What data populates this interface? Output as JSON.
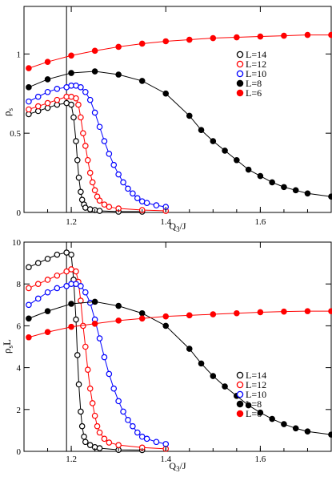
{
  "chart_data": [
    {
      "type": "line",
      "xlabel": "Q3/J",
      "ylabel": "ρs",
      "xlim": [
        1.1,
        1.75
      ],
      "ylim": [
        0,
        1.3
      ],
      "xticks": [
        1.2,
        1.4,
        1.6
      ],
      "xtick_labels": [
        "1.2",
        "1.4",
        "1.6"
      ],
      "yticks": [
        0,
        0.5,
        1
      ],
      "ytick_labels": [
        "0",
        "0.5",
        "1"
      ],
      "vline_x": 1.19,
      "legend_position": "right",
      "series": [
        {
          "name": "L=14",
          "color": "#000000",
          "marker": "open",
          "points": [
            [
              1.11,
              0.62
            ],
            [
              1.13,
              0.64
            ],
            [
              1.15,
              0.66
            ],
            [
              1.17,
              0.68
            ],
            [
              1.19,
              0.69
            ],
            [
              1.2,
              0.68
            ],
            [
              1.205,
              0.6
            ],
            [
              1.21,
              0.45
            ],
            [
              1.213,
              0.33
            ],
            [
              1.216,
              0.22
            ],
            [
              1.22,
              0.13
            ],
            [
              1.223,
              0.08
            ],
            [
              1.227,
              0.05
            ],
            [
              1.23,
              0.03
            ],
            [
              1.24,
              0.02
            ],
            [
              1.25,
              0.015
            ],
            [
              1.26,
              0.01
            ],
            [
              1.3,
              0.005
            ],
            [
              1.35,
              0.005
            ]
          ]
        },
        {
          "name": "L=12",
          "color": "#ff0000",
          "marker": "open",
          "points": [
            [
              1.11,
              0.65
            ],
            [
              1.13,
              0.67
            ],
            [
              1.15,
              0.69
            ],
            [
              1.17,
              0.71
            ],
            [
              1.19,
              0.73
            ],
            [
              1.2,
              0.73
            ],
            [
              1.21,
              0.72
            ],
            [
              1.215,
              0.68
            ],
            [
              1.22,
              0.6
            ],
            [
              1.225,
              0.5
            ],
            [
              1.23,
              0.42
            ],
            [
              1.235,
              0.33
            ],
            [
              1.24,
              0.25
            ],
            [
              1.245,
              0.19
            ],
            [
              1.25,
              0.14
            ],
            [
              1.255,
              0.1
            ],
            [
              1.26,
              0.075
            ],
            [
              1.27,
              0.05
            ],
            [
              1.28,
              0.035
            ],
            [
              1.3,
              0.025
            ],
            [
              1.35,
              0.015
            ],
            [
              1.4,
              0.01
            ]
          ]
        },
        {
          "name": "L=10",
          "color": "#0000ff",
          "marker": "open",
          "points": [
            [
              1.11,
              0.7
            ],
            [
              1.13,
              0.73
            ],
            [
              1.15,
              0.76
            ],
            [
              1.17,
              0.78
            ],
            [
              1.19,
              0.79
            ],
            [
              1.2,
              0.8
            ],
            [
              1.21,
              0.8
            ],
            [
              1.22,
              0.79
            ],
            [
              1.23,
              0.76
            ],
            [
              1.24,
              0.71
            ],
            [
              1.25,
              0.63
            ],
            [
              1.26,
              0.54
            ],
            [
              1.27,
              0.45
            ],
            [
              1.28,
              0.37
            ],
            [
              1.29,
              0.3
            ],
            [
              1.3,
              0.24
            ],
            [
              1.31,
              0.19
            ],
            [
              1.32,
              0.15
            ],
            [
              1.33,
              0.12
            ],
            [
              1.34,
              0.09
            ],
            [
              1.35,
              0.07
            ],
            [
              1.36,
              0.06
            ],
            [
              1.38,
              0.045
            ],
            [
              1.4,
              0.035
            ]
          ]
        },
        {
          "name": "L=8",
          "color": "#000000",
          "marker": "filled",
          "points": [
            [
              1.11,
              0.79
            ],
            [
              1.15,
              0.84
            ],
            [
              1.2,
              0.88
            ],
            [
              1.25,
              0.89
            ],
            [
              1.3,
              0.87
            ],
            [
              1.35,
              0.83
            ],
            [
              1.4,
              0.75
            ],
            [
              1.45,
              0.61
            ],
            [
              1.475,
              0.52
            ],
            [
              1.5,
              0.45
            ],
            [
              1.525,
              0.39
            ],
            [
              1.55,
              0.33
            ],
            [
              1.575,
              0.27
            ],
            [
              1.6,
              0.23
            ],
            [
              1.625,
              0.19
            ],
            [
              1.65,
              0.16
            ],
            [
              1.675,
              0.14
            ],
            [
              1.7,
              0.12
            ],
            [
              1.75,
              0.1
            ]
          ]
        },
        {
          "name": "L=6",
          "color": "#ff0000",
          "marker": "filled",
          "points": [
            [
              1.11,
              0.91
            ],
            [
              1.15,
              0.95
            ],
            [
              1.2,
              0.99
            ],
            [
              1.25,
              1.02
            ],
            [
              1.3,
              1.045
            ],
            [
              1.35,
              1.065
            ],
            [
              1.4,
              1.08
            ],
            [
              1.45,
              1.09
            ],
            [
              1.5,
              1.1
            ],
            [
              1.55,
              1.105
            ],
            [
              1.6,
              1.11
            ],
            [
              1.65,
              1.115
            ],
            [
              1.7,
              1.12
            ],
            [
              1.75,
              1.12
            ]
          ]
        }
      ]
    },
    {
      "type": "line",
      "xlabel": "Q3/J",
      "ylabel": "ρsL",
      "xlim": [
        1.1,
        1.75
      ],
      "ylim": [
        0,
        10
      ],
      "xticks": [
        1.2,
        1.4,
        1.6
      ],
      "xtick_labels": [
        "1.2",
        "1.4",
        "1.6"
      ],
      "yticks": [
        0,
        2,
        4,
        6,
        8,
        10
      ],
      "ytick_labels": [
        "0",
        "2",
        "4",
        "6",
        "8",
        "10"
      ],
      "vline_x": 1.19,
      "legend_position": "right",
      "series": [
        {
          "name": "L=14",
          "color": "#000000",
          "marker": "open",
          "points": [
            [
              1.11,
              8.8
            ],
            [
              1.13,
              9.0
            ],
            [
              1.15,
              9.2
            ],
            [
              1.17,
              9.4
            ],
            [
              1.19,
              9.5
            ],
            [
              1.2,
              9.4
            ],
            [
              1.205,
              8.2
            ],
            [
              1.21,
              6.3
            ],
            [
              1.213,
              4.6
            ],
            [
              1.216,
              3.2
            ],
            [
              1.22,
              1.9
            ],
            [
              1.223,
              1.2
            ],
            [
              1.227,
              0.7
            ],
            [
              1.23,
              0.45
            ],
            [
              1.24,
              0.3
            ],
            [
              1.25,
              0.2
            ],
            [
              1.26,
              0.15
            ],
            [
              1.3,
              0.07
            ],
            [
              1.35,
              0.06
            ]
          ]
        },
        {
          "name": "L=12",
          "color": "#ff0000",
          "marker": "open",
          "points": [
            [
              1.11,
              7.8
            ],
            [
              1.13,
              8.0
            ],
            [
              1.15,
              8.2
            ],
            [
              1.17,
              8.4
            ],
            [
              1.19,
              8.6
            ],
            [
              1.2,
              8.7
            ],
            [
              1.21,
              8.6
            ],
            [
              1.215,
              8.1
            ],
            [
              1.22,
              7.2
            ],
            [
              1.225,
              6.0
            ],
            [
              1.23,
              5.0
            ],
            [
              1.235,
              3.9
            ],
            [
              1.24,
              3.0
            ],
            [
              1.245,
              2.3
            ],
            [
              1.25,
              1.7
            ],
            [
              1.255,
              1.2
            ],
            [
              1.26,
              0.9
            ],
            [
              1.27,
              0.6
            ],
            [
              1.28,
              0.42
            ],
            [
              1.3,
              0.3
            ],
            [
              1.35,
              0.18
            ],
            [
              1.4,
              0.12
            ]
          ]
        },
        {
          "name": "L=10",
          "color": "#0000ff",
          "marker": "open",
          "points": [
            [
              1.11,
              7.0
            ],
            [
              1.13,
              7.3
            ],
            [
              1.15,
              7.6
            ],
            [
              1.17,
              7.8
            ],
            [
              1.19,
              7.9
            ],
            [
              1.2,
              8.0
            ],
            [
              1.21,
              8.0
            ],
            [
              1.22,
              7.9
            ],
            [
              1.23,
              7.6
            ],
            [
              1.24,
              7.1
            ],
            [
              1.25,
              6.3
            ],
            [
              1.26,
              5.4
            ],
            [
              1.27,
              4.5
            ],
            [
              1.28,
              3.7
            ],
            [
              1.29,
              3.0
            ],
            [
              1.3,
              2.4
            ],
            [
              1.31,
              1.9
            ],
            [
              1.32,
              1.5
            ],
            [
              1.33,
              1.2
            ],
            [
              1.34,
              0.9
            ],
            [
              1.35,
              0.7
            ],
            [
              1.36,
              0.6
            ],
            [
              1.38,
              0.45
            ],
            [
              1.4,
              0.35
            ]
          ]
        },
        {
          "name": "L=8",
          "color": "#000000",
          "marker": "filled",
          "points": [
            [
              1.11,
              6.35
            ],
            [
              1.15,
              6.7
            ],
            [
              1.2,
              7.05
            ],
            [
              1.25,
              7.15
            ],
            [
              1.3,
              6.95
            ],
            [
              1.35,
              6.6
            ],
            [
              1.4,
              6.0
            ],
            [
              1.45,
              4.9
            ],
            [
              1.475,
              4.2
            ],
            [
              1.5,
              3.6
            ],
            [
              1.525,
              3.1
            ],
            [
              1.55,
              2.65
            ],
            [
              1.575,
              2.2
            ],
            [
              1.6,
              1.85
            ],
            [
              1.625,
              1.55
            ],
            [
              1.65,
              1.3
            ],
            [
              1.675,
              1.1
            ],
            [
              1.7,
              0.95
            ],
            [
              1.75,
              0.8
            ]
          ]
        },
        {
          "name": "L=6",
          "color": "#ff0000",
          "marker": "filled",
          "points": [
            [
              1.11,
              5.45
            ],
            [
              1.15,
              5.7
            ],
            [
              1.2,
              5.95
            ],
            [
              1.25,
              6.1
            ],
            [
              1.3,
              6.25
            ],
            [
              1.35,
              6.35
            ],
            [
              1.4,
              6.45
            ],
            [
              1.45,
              6.5
            ],
            [
              1.5,
              6.55
            ],
            [
              1.55,
              6.6
            ],
            [
              1.6,
              6.65
            ],
            [
              1.65,
              6.68
            ],
            [
              1.7,
              6.7
            ],
            [
              1.75,
              6.7
            ]
          ]
        }
      ]
    }
  ]
}
